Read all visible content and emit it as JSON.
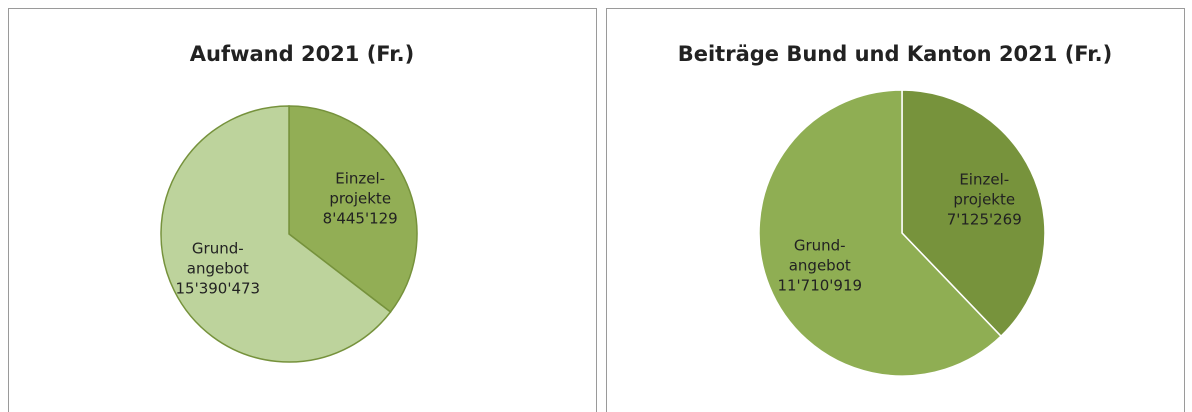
{
  "chart_data": [
    {
      "type": "pie",
      "title": "Aufwand 2021 (Fr.)",
      "categories": [
        [
          "Einzel-",
          "projekte"
        ],
        [
          "Grund-",
          "angebot"
        ]
      ],
      "values": [
        8445129,
        15390473
      ],
      "value_labels": [
        "8'445'129",
        "15'390'473"
      ],
      "colors": [
        "#92ae55",
        "#bdd39c"
      ],
      "stroke": "#76923c"
    },
    {
      "type": "pie",
      "title": "Beiträge Bund und Kanton 2021 (Fr.)",
      "categories": [
        [
          "Einzel-",
          "projekte"
        ],
        [
          "Grund-",
          "angebot"
        ]
      ],
      "values": [
        7125269,
        11710919
      ],
      "value_labels": [
        "7'125'269",
        "11'710'919"
      ],
      "colors": [
        "#77933c",
        "#8fae53"
      ],
      "stroke": "#ffffff"
    }
  ]
}
